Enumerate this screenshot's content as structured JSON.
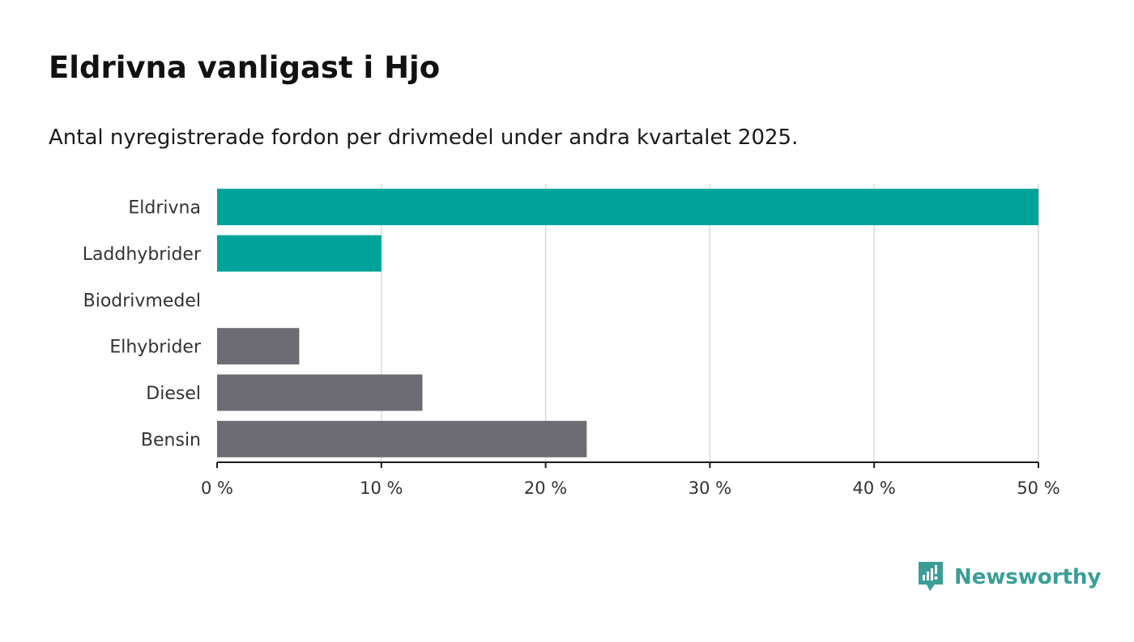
{
  "title": "Eldrivna vanligast i Hjo",
  "subtitle": "Antal nyregistrerade fordon per drivmedel under andra kvartalet 2025.",
  "brand": {
    "name": "Newsworthy",
    "color": "#3a9e96"
  },
  "colors": {
    "highlight": "#00a39a",
    "default": "#6d6c72",
    "grid": "#d9d9d9",
    "axis": "#1a1a1a"
  },
  "chart_data": {
    "type": "bar",
    "orientation": "horizontal",
    "categories": [
      "Eldrivna",
      "Laddhybrider",
      "Biodrivmedel",
      "Elhybrider",
      "Diesel",
      "Bensin"
    ],
    "values": [
      50,
      10,
      0,
      5,
      12.5,
      22.5
    ],
    "bar_colors": [
      "#00a39a",
      "#00a39a",
      "#6d6c72",
      "#6d6c72",
      "#6d6c72",
      "#6d6c72"
    ],
    "xlim": [
      0,
      50
    ],
    "xticks": [
      0,
      10,
      20,
      30,
      40,
      50
    ],
    "xtick_labels": [
      "0 %",
      "10 %",
      "20 %",
      "30 %",
      "40 %",
      "50 %"
    ],
    "grid": "vertical",
    "xlabel": "",
    "ylabel": ""
  }
}
